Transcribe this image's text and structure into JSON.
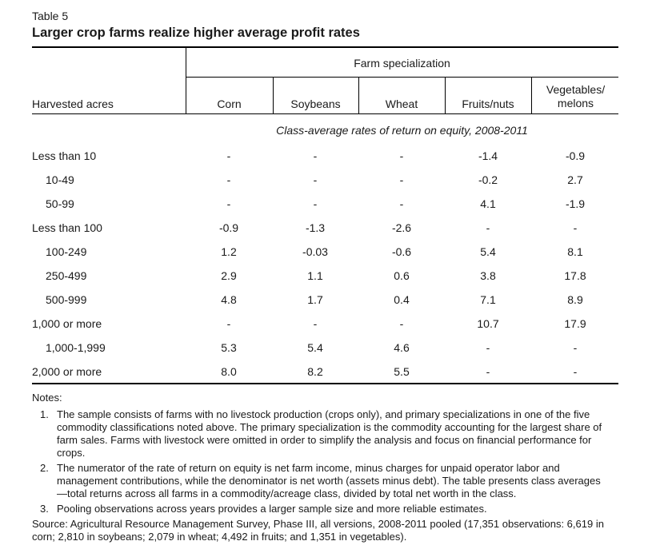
{
  "table": {
    "number": "Table 5",
    "title": "Larger crop farms realize higher average profit rates",
    "spanner_header": "Farm specialization",
    "stub_header": "Harvested acres",
    "columns": [
      "Corn",
      "Soybeans",
      "Wheat",
      "Fruits/nuts",
      "Vegetables/ melons"
    ],
    "subheader": "Class-average rates of return on equity, 2008-2011",
    "rows": [
      {
        "label": "Less than 10",
        "indent": 0,
        "values": [
          "-",
          "-",
          "-",
          "-1.4",
          "-0.9"
        ]
      },
      {
        "label": "10-49",
        "indent": 1,
        "values": [
          "-",
          "-",
          "-",
          "-0.2",
          "2.7"
        ]
      },
      {
        "label": "50-99",
        "indent": 1,
        "values": [
          "-",
          "-",
          "-",
          "4.1",
          "-1.9"
        ]
      },
      {
        "label": "Less than 100",
        "indent": 0,
        "values": [
          "-0.9",
          "-1.3",
          "-2.6",
          "-",
          "-"
        ]
      },
      {
        "label": "100-249",
        "indent": 1,
        "values": [
          "1.2",
          "-0.03",
          "-0.6",
          "5.4",
          "8.1"
        ]
      },
      {
        "label": "250-499",
        "indent": 1,
        "values": [
          "2.9",
          "1.1",
          "0.6",
          "3.8",
          "17.8"
        ]
      },
      {
        "label": "500-999",
        "indent": 1,
        "values": [
          "4.8",
          "1.7",
          "0.4",
          "7.1",
          "8.9"
        ]
      },
      {
        "label": "1,000 or more",
        "indent": 0,
        "values": [
          "-",
          "-",
          "-",
          "10.7",
          "17.9"
        ]
      },
      {
        "label": "1,000-1,999",
        "indent": 1,
        "values": [
          "5.3",
          "5.4",
          "4.6",
          "-",
          "-"
        ]
      },
      {
        "label": "2,000 or more",
        "indent": 0,
        "values": [
          "8.0",
          "8.2",
          "5.5",
          "-",
          "-"
        ]
      }
    ]
  },
  "notes": {
    "heading": "Notes:",
    "items": [
      {
        "num": "1.",
        "text": "The sample consists of farms with no livestock production (crops only), and primary specializations in one of the five commodity classifications noted above. The primary specialization is the commodity accounting for the largest share of farm sales. Farms with livestock were omitted in order to simplify the analysis and focus on financial performance for crops."
      },
      {
        "num": "2.",
        "text": "The numerator of the rate of return on equity is net farm income, minus charges for unpaid operator labor and management contributions, while the denominator is net worth (assets minus debt). The table presents class averages—total returns across all farms in a commodity/acreage class, divided by total net worth in the class."
      },
      {
        "num": "3.",
        "text": "Pooling observations across years provides a larger sample size and more reliable estimates."
      }
    ],
    "source": "Source: Agricultural Resource Management Survey, Phase III, all versions, 2008-2011 pooled (17,351 observations: 6,619 in corn; 2,810 in soybeans; 2,079 in wheat; 4,492 in fruits; and 1,351 in vegetables)."
  }
}
